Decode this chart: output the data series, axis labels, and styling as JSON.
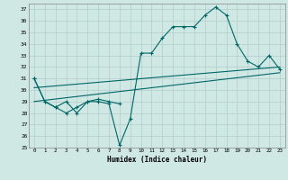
{
  "title": "",
  "xlabel": "Humidex (Indice chaleur)",
  "background_color": "#cfe8e4",
  "grid_color": "#b0cccc",
  "line_color": "#006666",
  "xlim": [
    -0.5,
    23.5
  ],
  "ylim": [
    25,
    37.5
  ],
  "yticks": [
    25,
    26,
    27,
    28,
    29,
    30,
    31,
    32,
    33,
    34,
    35,
    36,
    37
  ],
  "xticks": [
    0,
    1,
    2,
    3,
    4,
    5,
    6,
    7,
    8,
    9,
    10,
    11,
    12,
    13,
    14,
    15,
    16,
    17,
    18,
    19,
    20,
    21,
    22,
    23
  ],
  "xtick_labels": [
    "0",
    "1",
    "2",
    "3",
    "4",
    "5",
    "6",
    "7",
    "8",
    "9",
    "10",
    "11",
    "12",
    "13",
    "14",
    "15",
    "16",
    "17",
    "18",
    "19",
    "20",
    "21",
    "22",
    "23"
  ],
  "s1_x": [
    0,
    1,
    2,
    3,
    4,
    5,
    6,
    7,
    8,
    9,
    10,
    11,
    12,
    13,
    14,
    15,
    16,
    17,
    18,
    19,
    20,
    21,
    22,
    23
  ],
  "s1_y": [
    31,
    29,
    28.5,
    28,
    28.5,
    29,
    29,
    28.8,
    25.2,
    27.5,
    33.2,
    33.2,
    34.5,
    35.5,
    35.5,
    35.5,
    36.5,
    37.2,
    36.5,
    34,
    32.5,
    32,
    33,
    31.8
  ],
  "s2_x": [
    0,
    1,
    2,
    3,
    4,
    5,
    6,
    7,
    8
  ],
  "s2_y": [
    31,
    29,
    28.5,
    29,
    28,
    29,
    29.2,
    29,
    28.8
  ],
  "trend1_x": [
    0,
    23
  ],
  "trend1_y": [
    30.2,
    32.0
  ],
  "trend2_x": [
    0,
    23
  ],
  "trend2_y": [
    29.0,
    31.5
  ]
}
